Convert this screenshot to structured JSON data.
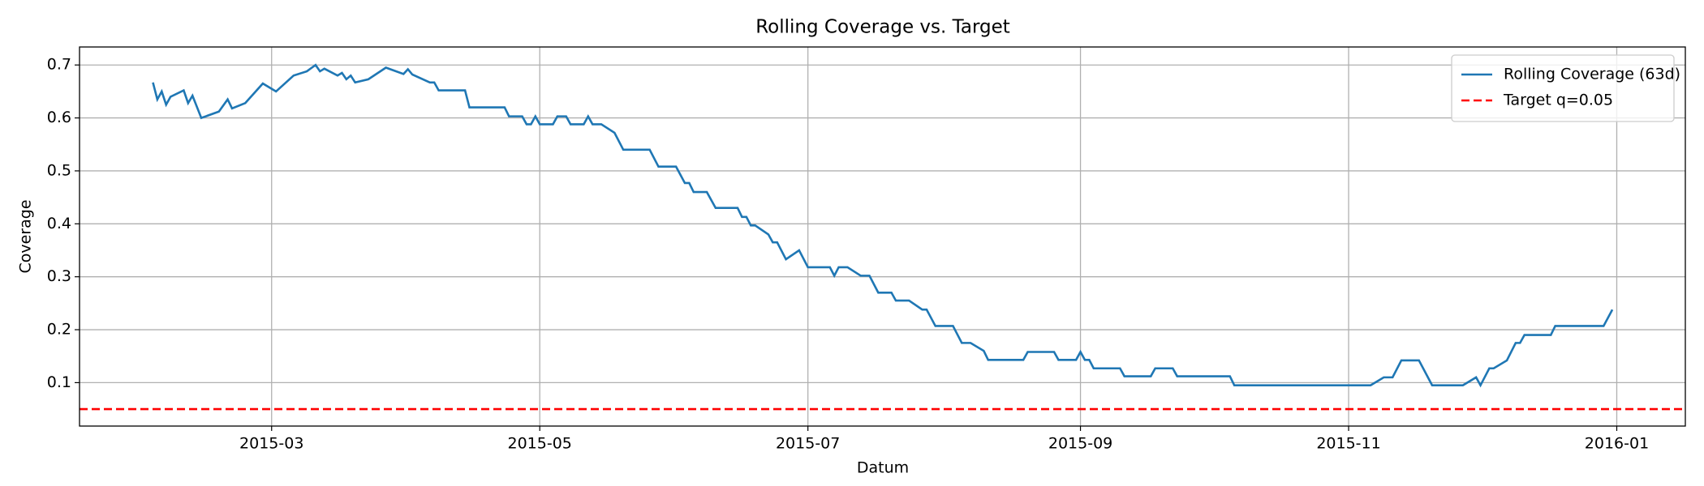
{
  "chart_data": {
    "type": "line",
    "title": "Rolling Coverage vs. Target",
    "x_label": "Datum",
    "y_label": "Coverage",
    "x": [
      32,
      33,
      34,
      35,
      36,
      39,
      40,
      41,
      43,
      47,
      49,
      50,
      53,
      57,
      60,
      64,
      67,
      69,
      70,
      71,
      74,
      75,
      76,
      77,
      78,
      81,
      85,
      89,
      90,
      91,
      95,
      96,
      97,
      103,
      104,
      112,
      113,
      116,
      117,
      118,
      119,
      120,
      123,
      124,
      126,
      127,
      130,
      131,
      132,
      134,
      137,
      139,
      145,
      147,
      151,
      153,
      154,
      155,
      158,
      160,
      165,
      166,
      167,
      168,
      169,
      172,
      173,
      174,
      176,
      179,
      181,
      186,
      187,
      188,
      190,
      193,
      195,
      197,
      200,
      201,
      204,
      207,
      208,
      210,
      214,
      216,
      218,
      221,
      222,
      230,
      231,
      237,
      238,
      242,
      243,
      244,
      245,
      246,
      252,
      253,
      259,
      260,
      264,
      265,
      277,
      278,
      309,
      312,
      314,
      316,
      320,
      323,
      330,
      333,
      334,
      336,
      337,
      340,
      342,
      343,
      344,
      350,
      351,
      362,
      364
    ],
    "series": [
      {
        "name": "Rolling Coverage (63d)",
        "color": "#1f77b4",
        "values": [
          0.667,
          0.635,
          0.65,
          0.625,
          0.64,
          0.652,
          0.628,
          0.642,
          0.6,
          0.612,
          0.635,
          0.618,
          0.628,
          0.665,
          0.65,
          0.68,
          0.688,
          0.7,
          0.688,
          0.693,
          0.68,
          0.685,
          0.673,
          0.68,
          0.667,
          0.673,
          0.695,
          0.683,
          0.692,
          0.682,
          0.667,
          0.667,
          0.652,
          0.652,
          0.62,
          0.62,
          0.603,
          0.603,
          0.588,
          0.588,
          0.603,
          0.588,
          0.588,
          0.603,
          0.603,
          0.588,
          0.588,
          0.603,
          0.588,
          0.588,
          0.572,
          0.54,
          0.54,
          0.508,
          0.508,
          0.477,
          0.477,
          0.46,
          0.46,
          0.43,
          0.43,
          0.413,
          0.413,
          0.397,
          0.397,
          0.38,
          0.365,
          0.365,
          0.333,
          0.35,
          0.318,
          0.318,
          0.302,
          0.318,
          0.318,
          0.302,
          0.302,
          0.27,
          0.27,
          0.255,
          0.255,
          0.238,
          0.238,
          0.207,
          0.207,
          0.175,
          0.175,
          0.16,
          0.143,
          0.143,
          0.158,
          0.158,
          0.143,
          0.143,
          0.158,
          0.143,
          0.143,
          0.127,
          0.127,
          0.112,
          0.112,
          0.127,
          0.127,
          0.112,
          0.112,
          0.095,
          0.095,
          0.11,
          0.11,
          0.142,
          0.142,
          0.095,
          0.095,
          0.11,
          0.095,
          0.127,
          0.127,
          0.142,
          0.175,
          0.175,
          0.19,
          0.19,
          0.207,
          0.207,
          0.238
        ]
      }
    ],
    "hlines": [
      {
        "name": "Target q=0.05",
        "value": 0.05,
        "color": "#ff0000",
        "dashed": true
      }
    ],
    "xlim": [
      15.3,
      380.6
    ],
    "xticks": [
      {
        "value": 59,
        "label": "2015-03"
      },
      {
        "value": 120,
        "label": "2015-05"
      },
      {
        "value": 181,
        "label": "2015-07"
      },
      {
        "value": 243,
        "label": "2015-09"
      },
      {
        "value": 304,
        "label": "2015-11"
      },
      {
        "value": 365,
        "label": "2016-01"
      }
    ],
    "ylim": [
      0.018,
      0.734
    ],
    "yticks": [
      0.1,
      0.2,
      0.3,
      0.4,
      0.5,
      0.6,
      0.7
    ],
    "grid": true,
    "legend": "upper-right"
  }
}
